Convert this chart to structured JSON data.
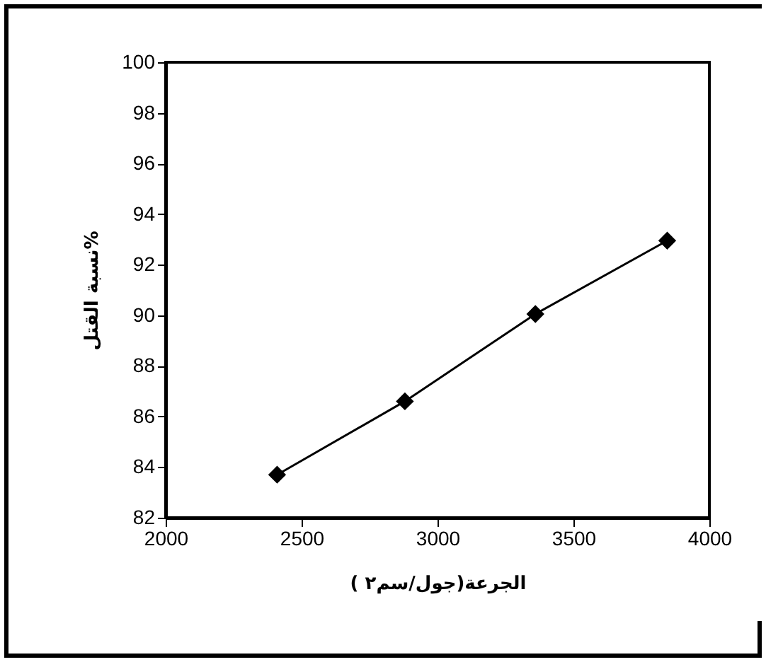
{
  "chart_data": {
    "type": "line",
    "xlabel": "الجرعة(جول/سم٢ )",
    "ylabel": "نسبة القتل%",
    "x": [
      2410,
      2880,
      3360,
      3845
    ],
    "series": [
      {
        "color": "#000000",
        "values": [
          83.7,
          86.6,
          90.05,
          92.95
        ]
      }
    ],
    "xlim": [
      2000,
      4000
    ],
    "xticks": [
      2000,
      2500,
      3000,
      3500,
      4000
    ],
    "ylim": [
      82,
      100
    ],
    "yticks": [
      82,
      84,
      86,
      88,
      90,
      92,
      94,
      96,
      98,
      100
    ],
    "grid": false,
    "legend": false,
    "marker": "diamond",
    "line_style": "solid"
  }
}
